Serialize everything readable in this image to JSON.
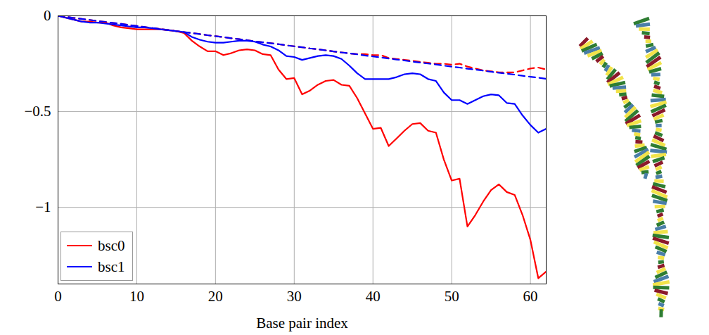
{
  "chart_data": {
    "type": "line",
    "xlabel": "Base pair index",
    "x": [
      0,
      1,
      2,
      3,
      4,
      5,
      6,
      7,
      8,
      9,
      10,
      11,
      12,
      13,
      14,
      15,
      16,
      17,
      18,
      19,
      20,
      21,
      22,
      23,
      24,
      25,
      26,
      27,
      28,
      29,
      30,
      31,
      32,
      33,
      34,
      35,
      36,
      37,
      38,
      39,
      40,
      41,
      42,
      43,
      44,
      45,
      46,
      47,
      48,
      49,
      50,
      51,
      52,
      53,
      54,
      55,
      56,
      57,
      58,
      59,
      60,
      61,
      62
    ],
    "xlim": [
      0,
      62
    ],
    "xticks": [
      0,
      10,
      20,
      30,
      40,
      50,
      60
    ],
    "ylim": [
      -1.4,
      0
    ],
    "yticks": [
      {
        "value": -1,
        "label": "−1"
      },
      {
        "value": -0.5,
        "label": "−0.5"
      },
      0
    ],
    "grid": true,
    "legend": "lower left",
    "series": [
      {
        "name": "bsc0",
        "color": "#ff0000",
        "line_style": "solid",
        "values": [
          0,
          -0.01,
          -0.02,
          -0.03,
          -0.03,
          -0.035,
          -0.035,
          -0.05,
          -0.06,
          -0.065,
          -0.07,
          -0.07,
          -0.07,
          -0.07,
          -0.075,
          -0.08,
          -0.09,
          -0.13,
          -0.16,
          -0.185,
          -0.185,
          -0.205,
          -0.195,
          -0.18,
          -0.175,
          -0.18,
          -0.2,
          -0.205,
          -0.28,
          -0.33,
          -0.325,
          -0.41,
          -0.39,
          -0.36,
          -0.34,
          -0.335,
          -0.36,
          -0.365,
          -0.43,
          -0.51,
          -0.59,
          -0.585,
          -0.68,
          -0.64,
          -0.6,
          -0.565,
          -0.56,
          -0.6,
          -0.61,
          -0.75,
          -0.86,
          -0.85,
          -1.1,
          -1.04,
          -0.97,
          -0.91,
          -0.88,
          -0.92,
          -0.935,
          -1.04,
          -1.17,
          -1.37,
          -1.335
        ]
      },
      {
        "name": "bsc1",
        "color": "#0000ff",
        "line_style": "solid",
        "values": [
          0,
          -0.01,
          -0.02,
          -0.03,
          -0.035,
          -0.035,
          -0.04,
          -0.045,
          -0.05,
          -0.055,
          -0.06,
          -0.06,
          -0.065,
          -0.07,
          -0.075,
          -0.08,
          -0.085,
          -0.11,
          -0.125,
          -0.135,
          -0.14,
          -0.14,
          -0.135,
          -0.13,
          -0.13,
          -0.135,
          -0.15,
          -0.16,
          -0.18,
          -0.21,
          -0.215,
          -0.23,
          -0.22,
          -0.21,
          -0.205,
          -0.21,
          -0.225,
          -0.26,
          -0.3,
          -0.33,
          -0.33,
          -0.33,
          -0.33,
          -0.32,
          -0.305,
          -0.3,
          -0.305,
          -0.33,
          -0.34,
          -0.4,
          -0.44,
          -0.44,
          -0.46,
          -0.44,
          -0.42,
          -0.41,
          -0.415,
          -0.455,
          -0.46,
          -0.52,
          -0.57,
          -0.61,
          -0.59
        ]
      },
      {
        "color": "#ff0000",
        "line_style": "dashed",
        "values": [
          0,
          -0.005,
          -0.011,
          -0.016,
          -0.021,
          -0.027,
          -0.032,
          -0.037,
          -0.042,
          -0.048,
          -0.053,
          -0.058,
          -0.064,
          -0.069,
          -0.074,
          -0.08,
          -0.085,
          -0.09,
          -0.095,
          -0.101,
          -0.106,
          -0.111,
          -0.117,
          -0.122,
          -0.127,
          -0.133,
          -0.138,
          -0.143,
          -0.148,
          -0.154,
          -0.159,
          -0.164,
          -0.17,
          -0.175,
          -0.18,
          -0.186,
          -0.191,
          -0.196,
          -0.2,
          -0.2,
          -0.205,
          -0.205,
          -0.22,
          -0.225,
          -0.23,
          -0.235,
          -0.24,
          -0.245,
          -0.25,
          -0.25,
          -0.255,
          -0.25,
          -0.265,
          -0.275,
          -0.285,
          -0.29,
          -0.295,
          -0.295,
          -0.295,
          -0.285,
          -0.275,
          -0.27,
          -0.28
        ]
      },
      {
        "color": "#0000ff",
        "line_style": "dashed",
        "values": [
          0,
          -0.005,
          -0.011,
          -0.016,
          -0.021,
          -0.027,
          -0.032,
          -0.037,
          -0.042,
          -0.048,
          -0.053,
          -0.058,
          -0.064,
          -0.069,
          -0.074,
          -0.08,
          -0.085,
          -0.09,
          -0.095,
          -0.101,
          -0.106,
          -0.111,
          -0.117,
          -0.122,
          -0.127,
          -0.133,
          -0.138,
          -0.143,
          -0.148,
          -0.154,
          -0.159,
          -0.164,
          -0.17,
          -0.175,
          -0.18,
          -0.186,
          -0.191,
          -0.196,
          -0.201,
          -0.207,
          -0.212,
          -0.217,
          -0.223,
          -0.228,
          -0.233,
          -0.239,
          -0.244,
          -0.249,
          -0.254,
          -0.26,
          -0.265,
          -0.27,
          -0.276,
          -0.281,
          -0.286,
          -0.292,
          -0.297,
          -0.302,
          -0.307,
          -0.313,
          -0.318,
          -0.323,
          -0.329
        ]
      }
    ]
  }
}
